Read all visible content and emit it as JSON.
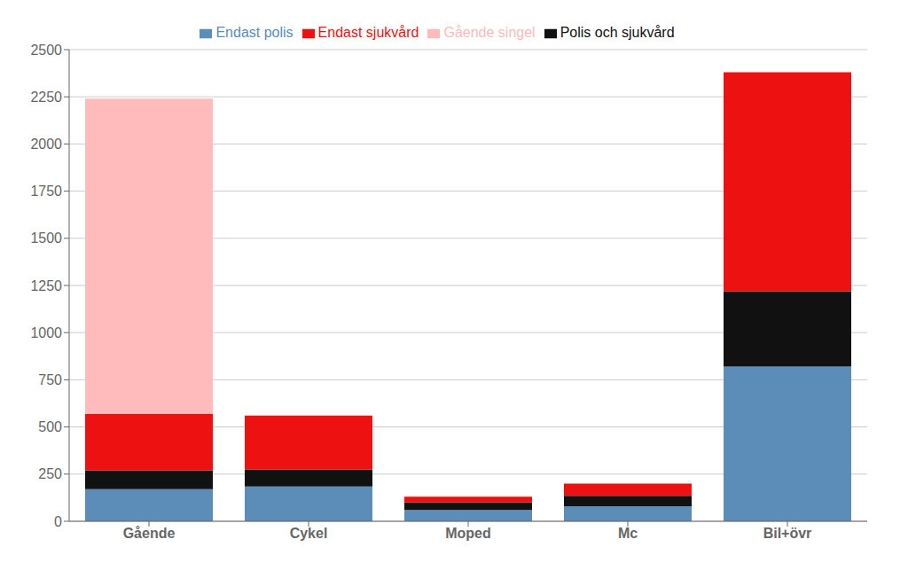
{
  "chart_data": {
    "type": "bar",
    "stacked": true,
    "categories": [
      "Gående",
      "Cykel",
      "Moped",
      "Mc",
      "Bil+övr"
    ],
    "series": [
      {
        "name": "Endast polis",
        "color": "#5B8DB8",
        "values": [
          170,
          185,
          60,
          80,
          820
        ]
      },
      {
        "name": "Polis och sjukvård",
        "color": "#111111",
        "values": [
          100,
          90,
          40,
          55,
          400
        ]
      },
      {
        "name": "Endast sjukvård",
        "color": "#EE1111",
        "values": [
          300,
          285,
          30,
          65,
          1160
        ]
      },
      {
        "name": "Gående singel",
        "color": "#FFBBBB",
        "values": [
          1670,
          0,
          0,
          0,
          0
        ]
      }
    ],
    "ylim": [
      0,
      2500
    ],
    "yticks": [
      0,
      250,
      500,
      750,
      1000,
      1250,
      1500,
      1750,
      2000,
      2250,
      2500
    ],
    "grid": true,
    "legend": "top"
  }
}
